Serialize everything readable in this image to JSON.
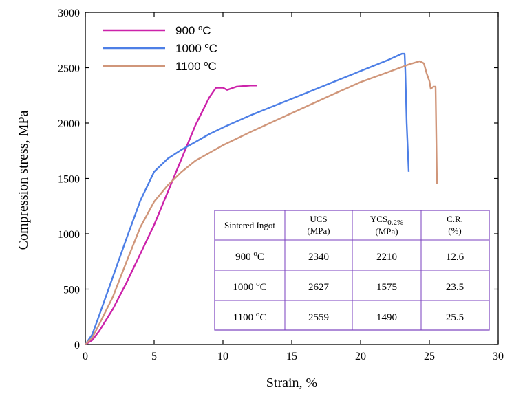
{
  "chart_data": {
    "type": "line",
    "title": "",
    "xlabel": "Strain, %",
    "ylabel": "Compression stress, MPa",
    "xlim": [
      0,
      30
    ],
    "ylim": [
      0,
      3000
    ],
    "x_ticks": [
      "0",
      "5",
      "10",
      "15",
      "20",
      "25",
      "30"
    ],
    "y_ticks": [
      "0",
      "500",
      "1000",
      "1500",
      "2000",
      "2500",
      "3000"
    ],
    "grid": false,
    "legend_position": "top-left",
    "temp_unit": "oC",
    "series": [
      {
        "name": "900",
        "color": "#cc22aa",
        "points": [
          [
            0,
            0
          ],
          [
            0.5,
            40
          ],
          [
            1,
            120
          ],
          [
            2,
            320
          ],
          [
            3,
            560
          ],
          [
            4,
            820
          ],
          [
            5,
            1080
          ],
          [
            6,
            1380
          ],
          [
            7,
            1680
          ],
          [
            8,
            1980
          ],
          [
            9,
            2230
          ],
          [
            9.5,
            2320
          ],
          [
            10,
            2320
          ],
          [
            10.3,
            2300
          ],
          [
            11,
            2330
          ],
          [
            12,
            2340
          ],
          [
            12.5,
            2340
          ]
        ]
      },
      {
        "name": "1000",
        "color": "#4d7fe6",
        "points": [
          [
            0,
            0
          ],
          [
            0.5,
            90
          ],
          [
            1,
            260
          ],
          [
            2,
            610
          ],
          [
            3,
            960
          ],
          [
            4,
            1300
          ],
          [
            5,
            1560
          ],
          [
            6,
            1680
          ],
          [
            7,
            1760
          ],
          [
            8,
            1830
          ],
          [
            9,
            1900
          ],
          [
            10,
            1960
          ],
          [
            12,
            2070
          ],
          [
            15,
            2220
          ],
          [
            18,
            2370
          ],
          [
            20,
            2470
          ],
          [
            22,
            2570
          ],
          [
            23,
            2627
          ],
          [
            23.2,
            2627
          ],
          [
            23.25,
            2480
          ],
          [
            23.35,
            2000
          ],
          [
            23.5,
            1560
          ]
        ]
      },
      {
        "name": "1100",
        "color": "#d0967a",
        "points": [
          [
            0,
            0
          ],
          [
            0.5,
            60
          ],
          [
            1,
            180
          ],
          [
            2,
            430
          ],
          [
            3,
            750
          ],
          [
            4,
            1060
          ],
          [
            5,
            1290
          ],
          [
            6,
            1440
          ],
          [
            7,
            1560
          ],
          [
            8,
            1660
          ],
          [
            9,
            1730
          ],
          [
            10,
            1800
          ],
          [
            12,
            1920
          ],
          [
            15,
            2090
          ],
          [
            18,
            2260
          ],
          [
            20,
            2370
          ],
          [
            22,
            2460
          ],
          [
            23.5,
            2530
          ],
          [
            24.3,
            2559
          ],
          [
            24.6,
            2540
          ],
          [
            24.8,
            2450
          ],
          [
            25,
            2380
          ],
          [
            25.1,
            2310
          ],
          [
            25.3,
            2330
          ],
          [
            25.45,
            2330
          ],
          [
            25.5,
            1900
          ],
          [
            25.55,
            1450
          ]
        ]
      }
    ],
    "table": {
      "headers": {
        "ingot": "Sintered Ingot",
        "ucs": "UCS",
        "ucs_unit": "(MPa)",
        "ycs": "YCS",
        "ycs_sub": "0.2%",
        "ycs_unit": "(MPa)",
        "cr": "C.R.",
        "cr_unit": "(%)"
      },
      "rows": [
        {
          "temp": "900",
          "ucs": "2340",
          "ycs": "2210",
          "cr": "12.6"
        },
        {
          "temp": "1000",
          "ucs": "2627",
          "ycs": "1575",
          "cr": "23.5"
        },
        {
          "temp": "1100",
          "ucs": "2559",
          "ycs": "1490",
          "cr": "25.5"
        }
      ]
    }
  }
}
